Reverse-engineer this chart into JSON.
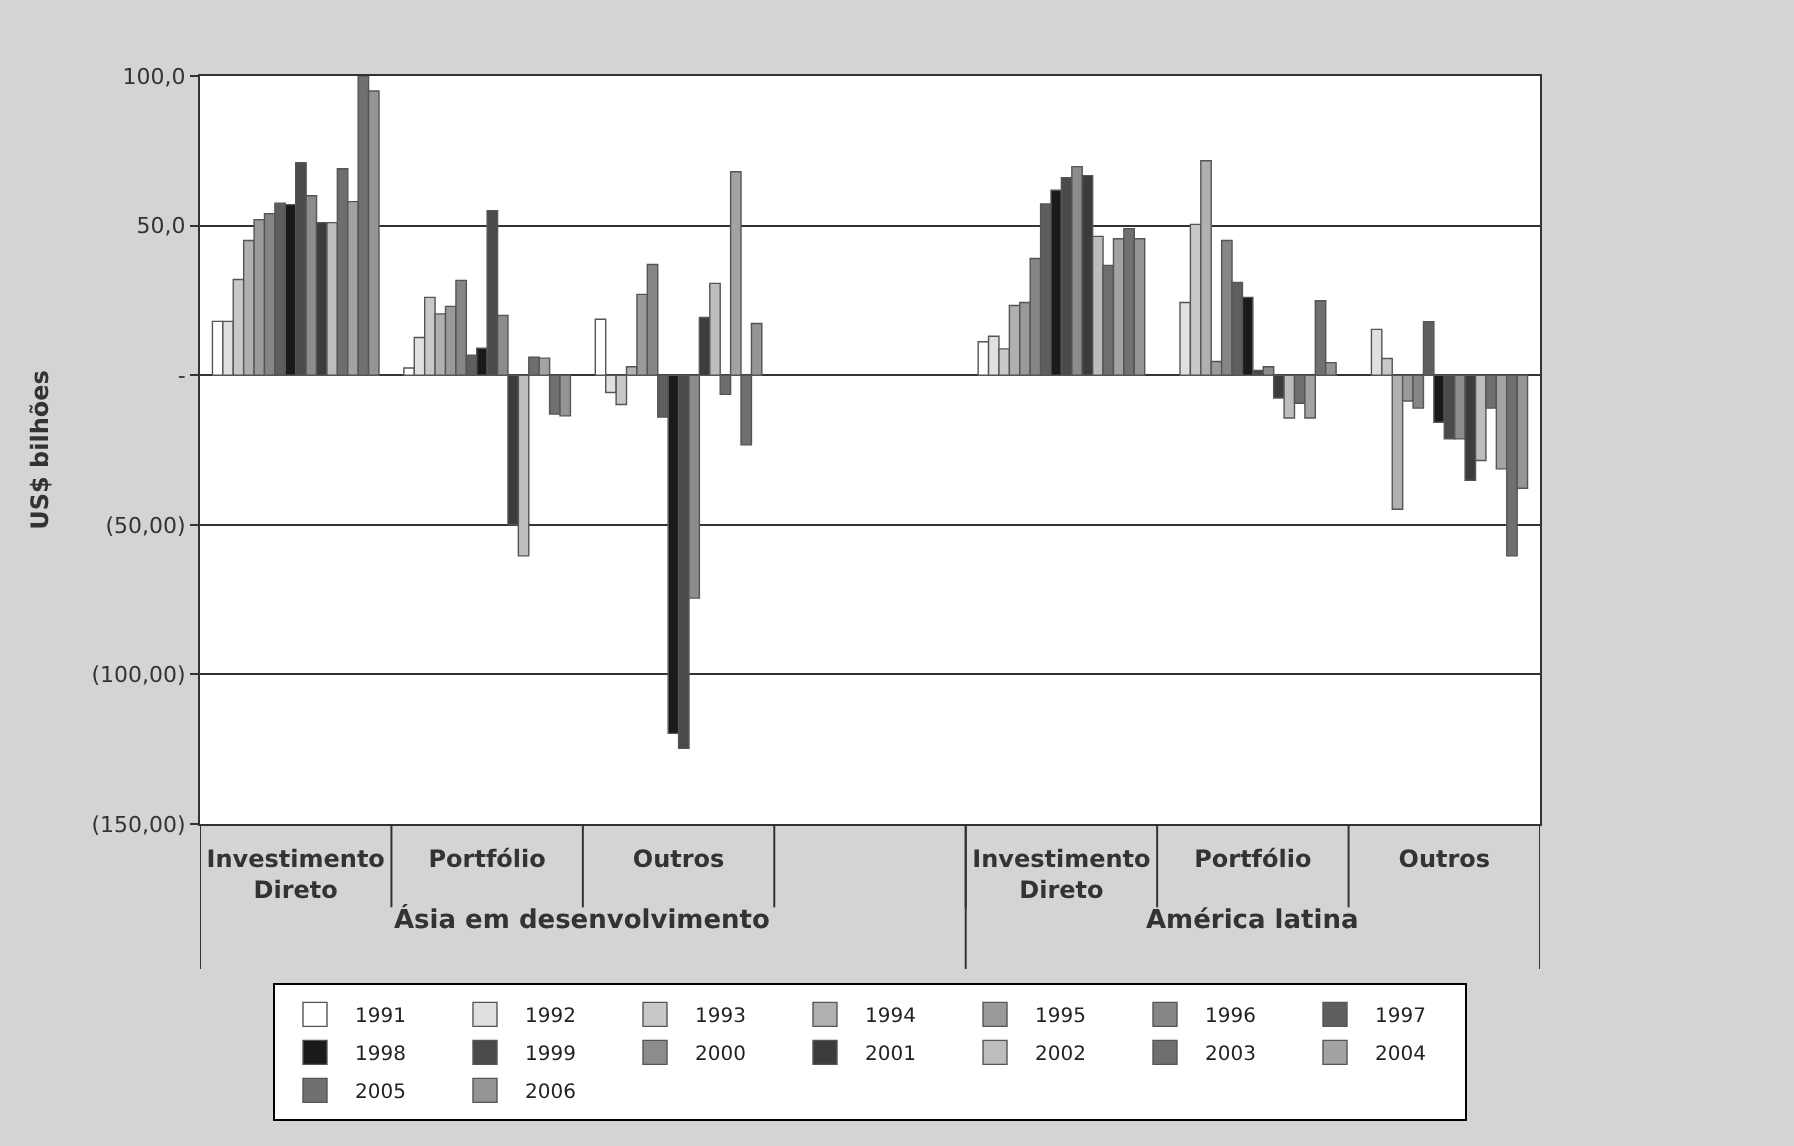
{
  "chart_data": {
    "type": "bar",
    "ylabel": "US$ bilhões",
    "categories": [
      "Investimento Direto",
      "Portfólio",
      "Outros",
      null,
      "Investimento Direto",
      "Portfólio",
      "Outros"
    ],
    "annotations": [
      "Ásia em desenvolvimento",
      "América latina"
    ],
    "ylim": [
      -150,
      100
    ],
    "yticks": [
      {
        "value": -150,
        "label": "(150,00)"
      },
      {
        "value": -100,
        "label": "(100,00)"
      },
      {
        "value": -50,
        "label": "(50,00)"
      },
      {
        "value": 0,
        "label": "-"
      },
      {
        "value": 50,
        "label": "50,0"
      },
      {
        "value": 100,
        "label": "100,0"
      }
    ],
    "grid": "y",
    "legend": "bottom",
    "series": [
      {
        "name": "1991",
        "color": "#ffffff",
        "values": [
          18,
          2.4,
          18.7,
          null,
          11.2,
          null,
          null
        ]
      },
      {
        "name": "1992",
        "color": "#e0e0e0",
        "values": [
          18,
          12.6,
          -5.8,
          null,
          13,
          24.3,
          15.3
        ]
      },
      {
        "name": "1993",
        "color": "#c8c8c8",
        "values": [
          32,
          26,
          -9.8,
          null,
          8.8,
          50.4,
          5.6
        ]
      },
      {
        "name": "1994",
        "color": "#b0b0b0",
        "values": [
          45,
          20.5,
          2.8,
          null,
          23.3,
          71.7,
          -44.8
        ]
      },
      {
        "name": "1995",
        "color": "#9a9a9a",
        "values": [
          52,
          23,
          27,
          null,
          24.3,
          4.6,
          -8.6
        ]
      },
      {
        "name": "1996",
        "color": "#868686",
        "values": [
          54,
          31.7,
          37,
          null,
          39,
          45,
          -11
        ]
      },
      {
        "name": "1997",
        "color": "#5e5e5e",
        "values": [
          57.5,
          6.7,
          -14,
          null,
          57.2,
          31,
          17.9
        ]
      },
      {
        "name": "1998",
        "color": "#1a1a1a",
        "values": [
          57,
          9,
          -119.7,
          null,
          61.8,
          26,
          -15.7
        ]
      },
      {
        "name": "1999",
        "color": "#4a4a4a",
        "values": [
          71,
          55,
          -124.7,
          null,
          66,
          1.6,
          -21.3
        ]
      },
      {
        "name": "2000",
        "color": "#8c8c8c",
        "values": [
          60,
          20,
          -74.5,
          null,
          69.7,
          2.8,
          -21.3
        ]
      },
      {
        "name": "2001",
        "color": "#3c3c3c",
        "values": [
          51,
          -50,
          19.3,
          null,
          66.7,
          -7.6,
          -35.1
        ]
      },
      {
        "name": "2002",
        "color": "#bdbdbd",
        "values": [
          51,
          -60.4,
          30.7,
          null,
          46.4,
          -14.3,
          -28.5
        ]
      },
      {
        "name": "2003",
        "color": "#6e6e6e",
        "values": [
          69,
          6,
          -6.4,
          null,
          36.7,
          -9.4,
          -11
        ]
      },
      {
        "name": "2004",
        "color": "#a3a3a3",
        "values": [
          58,
          5.7,
          68,
          null,
          45.6,
          -14.3,
          -31.3
        ]
      },
      {
        "name": "2005",
        "color": "#707070",
        "values": [
          100,
          -13,
          -23.3,
          null,
          49,
          24.9,
          -60.4
        ]
      },
      {
        "name": "2006",
        "color": "#959595",
        "values": [
          95,
          -13.6,
          17.3,
          null,
          45.6,
          4.2,
          -37.8
        ]
      }
    ]
  }
}
